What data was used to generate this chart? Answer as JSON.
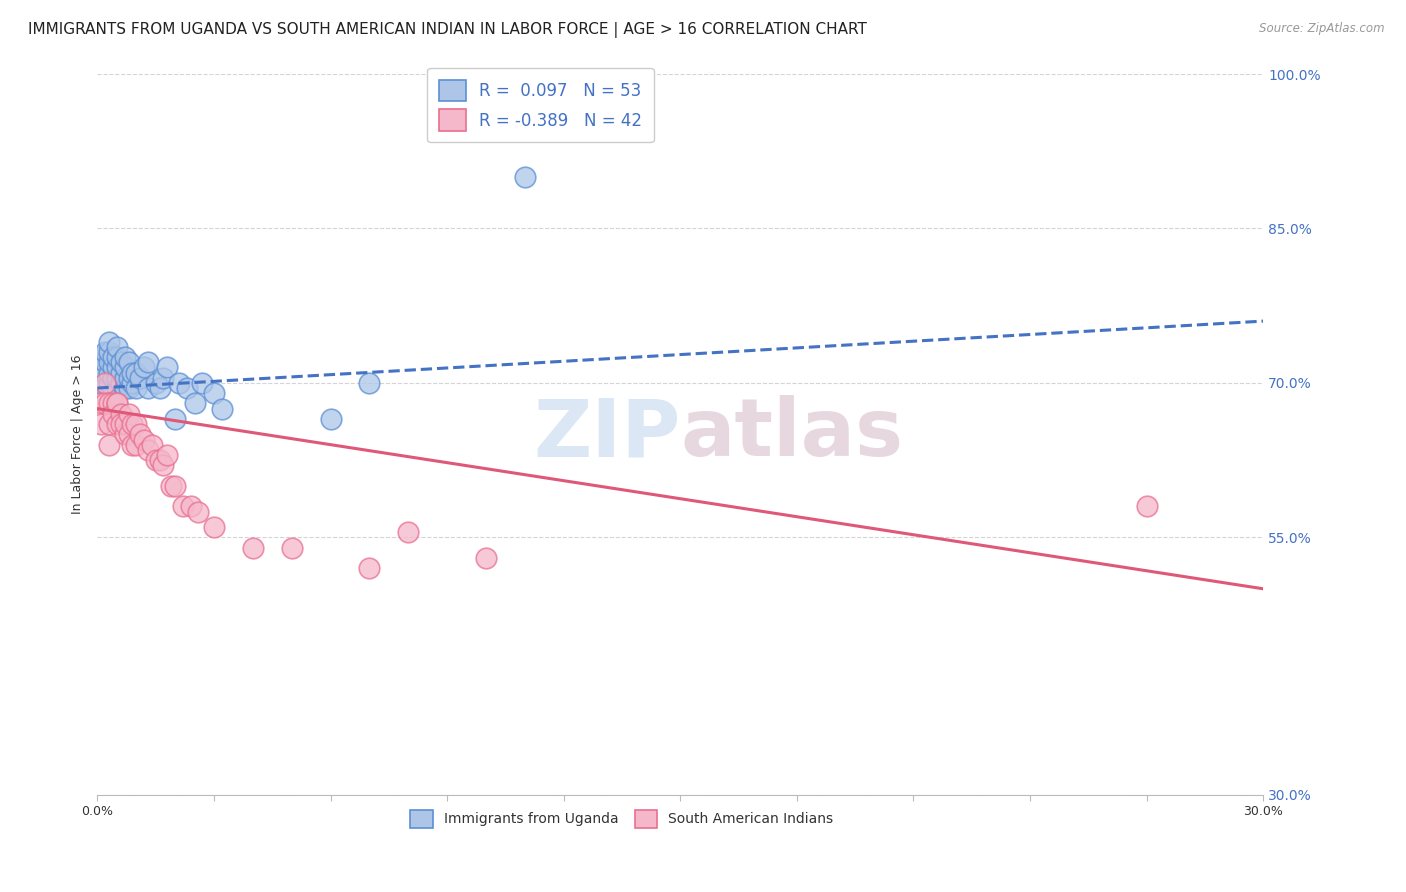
{
  "title": "IMMIGRANTS FROM UGANDA VS SOUTH AMERICAN INDIAN IN LABOR FORCE | AGE > 16 CORRELATION CHART",
  "source": "Source: ZipAtlas.com",
  "ylabel": "In Labor Force | Age > 16",
  "xlim": [
    0.0,
    0.3
  ],
  "ylim": [
    0.3,
    1.0
  ],
  "xtick_positions": [
    0.0,
    0.03,
    0.06,
    0.09,
    0.12,
    0.15,
    0.18,
    0.21,
    0.24,
    0.27,
    0.3
  ],
  "xticklabels_show": [
    "0.0%",
    "",
    "",
    "",
    "",
    "",
    "",
    "",
    "",
    "",
    "30.0%"
  ],
  "ytick_positions": [
    0.3,
    0.55,
    0.7,
    0.85,
    1.0
  ],
  "ytick_labels": [
    "30.0%",
    "55.0%",
    "70.0%",
    "85.0%",
    "100.0%"
  ],
  "legend_r1": "R =  0.097",
  "legend_n1": "N = 53",
  "legend_r2": "R = -0.389",
  "legend_n2": "N = 42",
  "blue_fill": "#adc6e8",
  "blue_edge": "#5b8fd4",
  "pink_fill": "#f5b8cb",
  "pink_edge": "#e87090",
  "blue_line_color": "#4472c4",
  "pink_line_color": "#e05878",
  "watermark_color_zip": "#c8daf0",
  "watermark_color_atlas": "#d8c0cc",
  "background_color": "#ffffff",
  "grid_color": "#d0d0d0",
  "title_fontsize": 11,
  "tick_fontsize": 9,
  "ylabel_fontsize": 9,
  "uganda_x": [
    0.001,
    0.001,
    0.001,
    0.002,
    0.002,
    0.002,
    0.002,
    0.003,
    0.003,
    0.003,
    0.003,
    0.003,
    0.004,
    0.004,
    0.004,
    0.004,
    0.005,
    0.005,
    0.005,
    0.005,
    0.005,
    0.006,
    0.006,
    0.006,
    0.007,
    0.007,
    0.007,
    0.007,
    0.008,
    0.008,
    0.008,
    0.009,
    0.009,
    0.01,
    0.01,
    0.011,
    0.012,
    0.013,
    0.013,
    0.015,
    0.016,
    0.017,
    0.018,
    0.02,
    0.021,
    0.023,
    0.025,
    0.027,
    0.03,
    0.032,
    0.06,
    0.07,
    0.11
  ],
  "uganda_y": [
    0.7,
    0.715,
    0.725,
    0.7,
    0.71,
    0.72,
    0.73,
    0.7,
    0.71,
    0.72,
    0.73,
    0.74,
    0.69,
    0.705,
    0.715,
    0.725,
    0.695,
    0.705,
    0.715,
    0.725,
    0.735,
    0.7,
    0.71,
    0.72,
    0.695,
    0.705,
    0.715,
    0.725,
    0.695,
    0.705,
    0.72,
    0.7,
    0.71,
    0.695,
    0.71,
    0.705,
    0.715,
    0.695,
    0.72,
    0.7,
    0.695,
    0.705,
    0.715,
    0.665,
    0.7,
    0.695,
    0.68,
    0.7,
    0.69,
    0.675,
    0.665,
    0.7,
    0.9
  ],
  "sai_x": [
    0.001,
    0.001,
    0.002,
    0.002,
    0.003,
    0.003,
    0.003,
    0.004,
    0.004,
    0.005,
    0.005,
    0.005,
    0.006,
    0.006,
    0.007,
    0.007,
    0.008,
    0.008,
    0.009,
    0.009,
    0.01,
    0.01,
    0.011,
    0.012,
    0.013,
    0.014,
    0.015,
    0.016,
    0.017,
    0.018,
    0.019,
    0.02,
    0.022,
    0.024,
    0.026,
    0.03,
    0.04,
    0.05,
    0.07,
    0.08,
    0.1,
    0.27
  ],
  "sai_y": [
    0.68,
    0.66,
    0.7,
    0.68,
    0.68,
    0.66,
    0.64,
    0.68,
    0.67,
    0.68,
    0.66,
    0.68,
    0.67,
    0.66,
    0.65,
    0.66,
    0.65,
    0.67,
    0.66,
    0.64,
    0.66,
    0.64,
    0.65,
    0.645,
    0.635,
    0.64,
    0.625,
    0.625,
    0.62,
    0.63,
    0.6,
    0.6,
    0.58,
    0.58,
    0.575,
    0.56,
    0.54,
    0.54,
    0.52,
    0.555,
    0.53,
    0.58
  ],
  "uganda_trendline_x": [
    0.0,
    0.3
  ],
  "uganda_trendline_y": [
    0.695,
    0.76
  ],
  "sai_trendline_x": [
    0.0,
    0.3
  ],
  "sai_trendline_y": [
    0.675,
    0.5
  ]
}
